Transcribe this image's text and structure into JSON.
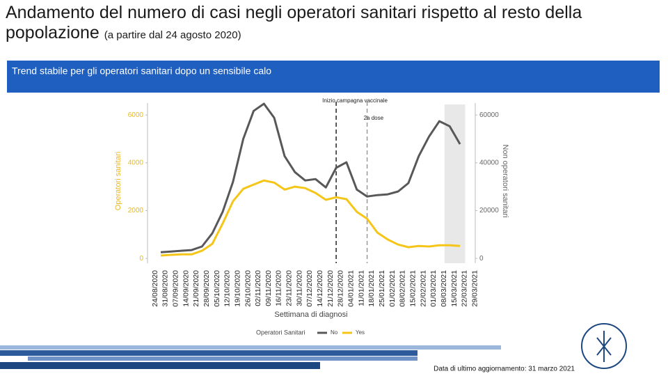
{
  "title": "Andamento del numero di casi negli operatori sanitari rispetto al resto della popolazione",
  "subtitle": "(a partire dal 24 agosto 2020)",
  "banner": "Trend stabile per gli operatori sanitari dopo un sensibile calo",
  "footer": "Data di ultimo aggiornamento: 31 marzo 2021",
  "chart_data": {
    "type": "line",
    "x_label": "Settimana di diagnosi",
    "y_label": "Operatori sanitari",
    "y2_label": "Non operatori sanitari",
    "legend_title": "Operatori Sanitari",
    "categories": [
      "24/08/2020",
      "31/08/2020",
      "07/09/2020",
      "14/09/2020",
      "21/09/2020",
      "28/09/2020",
      "05/10/2020",
      "12/10/2020",
      "19/10/2020",
      "26/10/2020",
      "02/11/2020",
      "09/11/2020",
      "16/11/2020",
      "23/11/2020",
      "30/11/2020",
      "07/12/2020",
      "14/12/2020",
      "21/12/2020",
      "28/12/2020",
      "04/01/2021",
      "11/01/2021",
      "18/01/2021",
      "25/01/2021",
      "01/02/2021",
      "08/02/2021",
      "15/02/2021",
      "22/02/2021",
      "01/03/2021",
      "08/03/2021",
      "15/03/2021",
      "22/03/2021",
      "29/03/2021"
    ],
    "series": [
      {
        "name": "No",
        "color": "#58585a",
        "axis": "y2",
        "values": [
          2600,
          2900,
          3200,
          3500,
          5000,
          10500,
          19500,
          32000,
          50000,
          61700,
          64700,
          58800,
          42800,
          36100,
          32600,
          33200,
          29700,
          37900,
          40200,
          28800,
          25900,
          26500,
          26800,
          28000,
          31500,
          42800,
          51000,
          57400,
          55300,
          47800,
          null,
          null
        ]
      },
      {
        "name": "Yes",
        "color": "#f5c518",
        "values": [
          120,
          150,
          170,
          170,
          320,
          610,
          1460,
          2390,
          2910,
          3090,
          3260,
          3170,
          2880,
          3000,
          2940,
          2740,
          2450,
          2560,
          2480,
          1950,
          1660,
          1080,
          790,
          580,
          470,
          520,
          500,
          550,
          550,
          520,
          null,
          null
        ]
      }
    ],
    "annotations": [
      {
        "text": "Inizio campagna vaccinale",
        "x": "21/12/2020",
        "color": "#222222"
      },
      {
        "text": "2a dose",
        "x": "11/01/2021",
        "color": "#999999"
      }
    ],
    "shaded": [
      "08/03/2021",
      "15/03/2021"
    ],
    "ylim": [
      -200,
      6500
    ],
    "yticks": [
      0,
      2000,
      4000,
      6000
    ],
    "y2lim": [
      -2000,
      65000
    ],
    "y2ticks": [
      0,
      20000,
      40000,
      60000
    ]
  }
}
